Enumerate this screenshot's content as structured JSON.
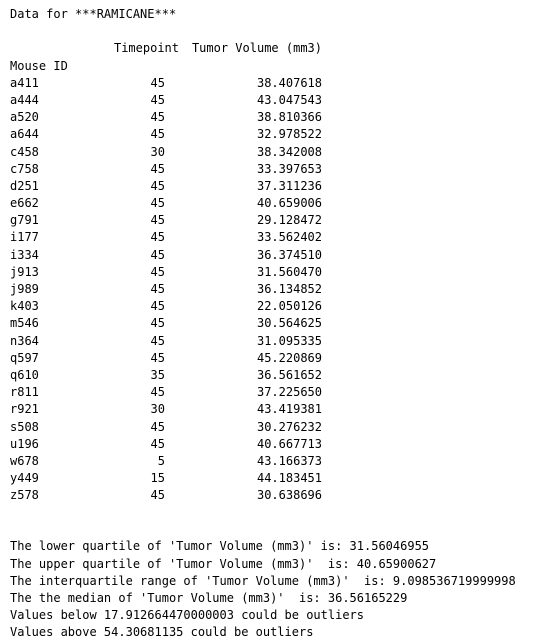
{
  "title": "Data for ***RAMICANE***",
  "table": {
    "columns": [
      "Timepoint",
      "Tumor Volume (mm3)"
    ],
    "index_name": "Mouse ID",
    "rows": [
      {
        "id": "a411",
        "timepoint": "45",
        "volume": "38.407618"
      },
      {
        "id": "a444",
        "timepoint": "45",
        "volume": "43.047543"
      },
      {
        "id": "a520",
        "timepoint": "45",
        "volume": "38.810366"
      },
      {
        "id": "a644",
        "timepoint": "45",
        "volume": "32.978522"
      },
      {
        "id": "c458",
        "timepoint": "30",
        "volume": "38.342008"
      },
      {
        "id": "c758",
        "timepoint": "45",
        "volume": "33.397653"
      },
      {
        "id": "d251",
        "timepoint": "45",
        "volume": "37.311236"
      },
      {
        "id": "e662",
        "timepoint": "45",
        "volume": "40.659006"
      },
      {
        "id": "g791",
        "timepoint": "45",
        "volume": "29.128472"
      },
      {
        "id": "i177",
        "timepoint": "45",
        "volume": "33.562402"
      },
      {
        "id": "i334",
        "timepoint": "45",
        "volume": "36.374510"
      },
      {
        "id": "j913",
        "timepoint": "45",
        "volume": "31.560470"
      },
      {
        "id": "j989",
        "timepoint": "45",
        "volume": "36.134852"
      },
      {
        "id": "k403",
        "timepoint": "45",
        "volume": "22.050126"
      },
      {
        "id": "m546",
        "timepoint": "45",
        "volume": "30.564625"
      },
      {
        "id": "n364",
        "timepoint": "45",
        "volume": "31.095335"
      },
      {
        "id": "q597",
        "timepoint": "45",
        "volume": "45.220869"
      },
      {
        "id": "q610",
        "timepoint": "35",
        "volume": "36.561652"
      },
      {
        "id": "r811",
        "timepoint": "45",
        "volume": "37.225650"
      },
      {
        "id": "r921",
        "timepoint": "30",
        "volume": "43.419381"
      },
      {
        "id": "s508",
        "timepoint": "45",
        "volume": "30.276232"
      },
      {
        "id": "u196",
        "timepoint": "45",
        "volume": "40.667713"
      },
      {
        "id": "w678",
        "timepoint": "5",
        "volume": "43.166373"
      },
      {
        "id": "y449",
        "timepoint": "15",
        "volume": "44.183451"
      },
      {
        "id": "z578",
        "timepoint": "45",
        "volume": "30.638696"
      }
    ]
  },
  "stats": {
    "lower_quartile": "The lower quartile of 'Tumor Volume (mm3)' is: 31.56046955",
    "upper_quartile": "The upper quartile of 'Tumor Volume (mm3)'  is: 40.65900627",
    "iqr": "The interquartile range of 'Tumor Volume (mm3)'  is: 9.098536719999998",
    "median": "The the median of 'Tumor Volume (mm3)'  is: 36.56165229",
    "below": "Values below 17.912664470000003 could be outliers",
    "above": "Values above 54.30681135 could be outliers"
  }
}
